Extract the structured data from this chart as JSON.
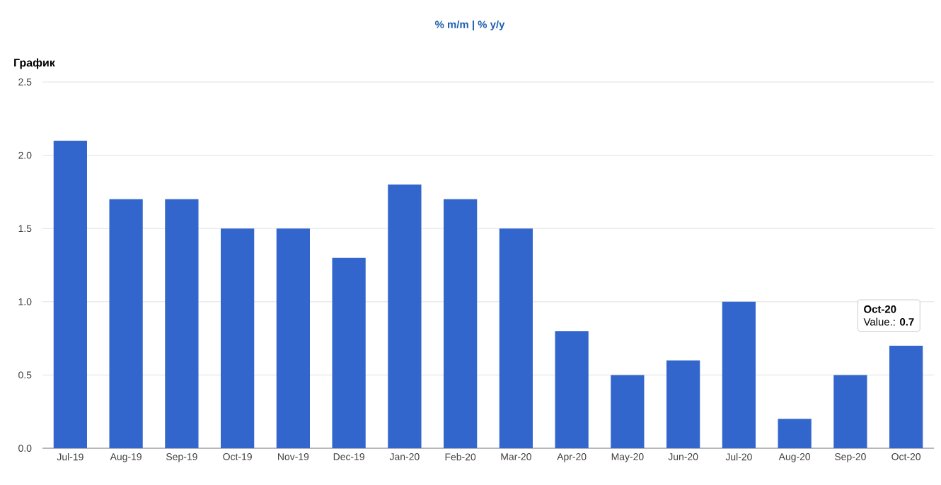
{
  "chart_data": {
    "type": "bar",
    "title": "График",
    "categories": [
      "Jul-19",
      "Aug-19",
      "Sep-19",
      "Oct-19",
      "Nov-19",
      "Dec-19",
      "Jan-20",
      "Feb-20",
      "Mar-20",
      "Apr-20",
      "May-20",
      "Jun-20",
      "Jul-20",
      "Aug-20",
      "Sep-20",
      "Oct-20"
    ],
    "values": [
      2.1,
      1.7,
      1.7,
      1.5,
      1.5,
      1.3,
      1.8,
      1.7,
      1.5,
      0.8,
      0.5,
      0.6,
      1.0,
      0.2,
      0.5,
      0.7
    ],
    "color": "#3366cc",
    "ylim": [
      0,
      2.5
    ],
    "yticks": [
      {
        "value": 0,
        "label": "0.0"
      },
      0.5,
      {
        "value": 1,
        "label": "1.0"
      },
      1.5,
      {
        "value": 2,
        "label": "2.0"
      },
      2.5
    ],
    "grid": "y",
    "annotations": [
      "% m/m | % y/y",
      "Oct-20",
      {
        "text": "Value.: **0.7**",
        "x": "Oct-20",
        "y": 0.7
      }
    ]
  }
}
